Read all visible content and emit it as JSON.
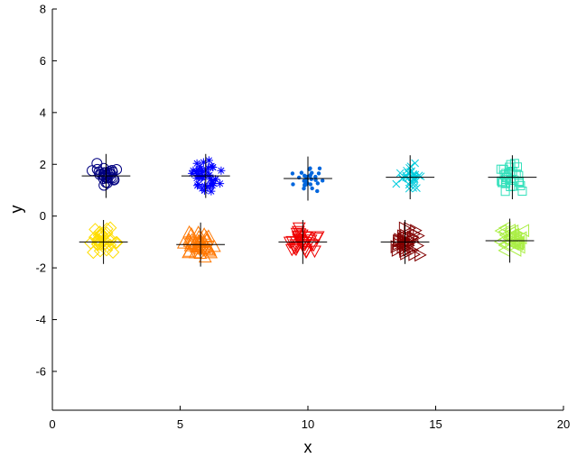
{
  "chart_data": {
    "type": "scatter",
    "title": "",
    "xlabel": "x",
    "ylabel": "y",
    "xlim": [
      0,
      20
    ],
    "ylim": [
      -7.5,
      8
    ],
    "xticks": [
      0,
      5,
      10,
      15,
      20
    ],
    "yticks": [
      -6,
      -4,
      -2,
      0,
      2,
      4,
      6,
      8
    ],
    "grid": false,
    "legend": "none",
    "series": [
      {
        "marker": "circle",
        "color": "#000080",
        "center": [
          2.1,
          1.55
        ],
        "xspread": 0.45,
        "yspread": 0.4,
        "count": 30
      },
      {
        "marker": "star",
        "color": "#0000ff",
        "center": [
          6.0,
          1.55
        ],
        "xspread": 0.5,
        "yspread": 0.5,
        "count": 40
      },
      {
        "marker": "dot",
        "color": "#0066dd",
        "center": [
          10.0,
          1.45
        ],
        "xspread": 0.5,
        "yspread": 0.4,
        "count": 30
      },
      {
        "marker": "x",
        "color": "#00ccdd",
        "center": [
          14.0,
          1.5
        ],
        "xspread": 0.45,
        "yspread": 0.45,
        "count": 30
      },
      {
        "marker": "square",
        "color": "#33e0bb",
        "center": [
          18.0,
          1.5
        ],
        "xspread": 0.45,
        "yspread": 0.45,
        "count": 30
      },
      {
        "marker": "diamond",
        "color": "#ffdd00",
        "center": [
          2.0,
          -1.0
        ],
        "xspread": 0.45,
        "yspread": 0.45,
        "count": 30
      },
      {
        "marker": "triangle-up",
        "color": "#ff7700",
        "center": [
          5.8,
          -1.1
        ],
        "xspread": 0.55,
        "yspread": 0.4,
        "count": 40
      },
      {
        "marker": "triangle-down",
        "color": "#ee0000",
        "center": [
          9.8,
          -1.0
        ],
        "xspread": 0.5,
        "yspread": 0.45,
        "count": 35
      },
      {
        "marker": "triangle-right",
        "color": "#800000",
        "center": [
          13.8,
          -1.0
        ],
        "xspread": 0.5,
        "yspread": 0.45,
        "count": 35
      },
      {
        "marker": "triangle-left",
        "color": "#aaee44",
        "center": [
          17.9,
          -0.95
        ],
        "xspread": 0.45,
        "yspread": 0.45,
        "count": 30
      }
    ]
  }
}
